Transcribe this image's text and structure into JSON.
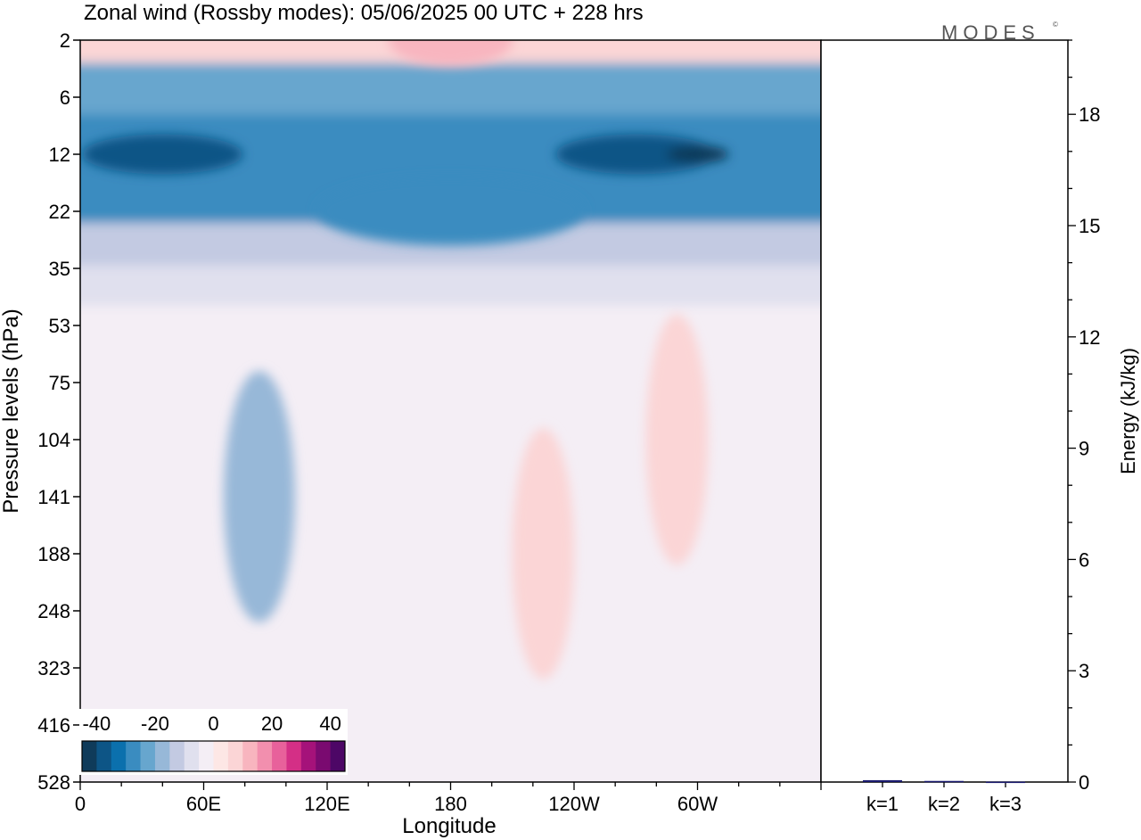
{
  "title": "Zonal wind (Rossby modes):  05/06/2025  00 UTC  + 228 hrs",
  "logo": "MODES",
  "logo_mark": "©",
  "colors": {
    "neg": [
      "#0f3b5a",
      "#0d5586",
      "#0b70ad",
      "#3a8cc0",
      "#67a6ce",
      "#97b8d8",
      "#c3cae2",
      "#e0e0ee"
    ],
    "zero": "#f4eef5",
    "pos": [
      "#fde7e5",
      "#fbd5d6",
      "#f8b5bf",
      "#f28fae",
      "#e8619b",
      "#d42f86",
      "#a5127a",
      "#7a0a70",
      "#4d0766"
    ],
    "bar": "#1a1a6e"
  },
  "chart_data": [
    {
      "type": "heatmap",
      "title": "Zonal wind (Rossby modes):  05/06/2025  00 UTC  + 228 hrs",
      "xlabel": "Longitude",
      "ylabel": "Pressure levels (hPa)",
      "x_ticks": [
        "0",
        "60E",
        "120E",
        "180",
        "120W",
        "60W"
      ],
      "y_ticks": [
        "2",
        "6",
        "12",
        "22",
        "35",
        "53",
        "75",
        "104",
        "141",
        "188",
        "248",
        "323",
        "416",
        "528"
      ],
      "colorbar": {
        "tick_labels": [
          "-40",
          "-20",
          "0",
          "20",
          "40"
        ],
        "range": [
          -45,
          45
        ],
        "step": 5
      },
      "features": [
        {
          "level": "2",
          "lon": 180,
          "value": 15
        },
        {
          "level": "12",
          "lon": 40,
          "value": -35
        },
        {
          "level": "12",
          "lon": 270,
          "value": -35
        },
        {
          "level": "12",
          "lon": 300,
          "value": -40
        },
        {
          "level": "22",
          "lon": 180,
          "value": -25
        },
        {
          "level": "141",
          "lon": 87,
          "value": -15
        },
        {
          "level": "188",
          "lon": 225,
          "value": 12
        },
        {
          "level": "104",
          "lon": 290,
          "value": 12
        }
      ]
    },
    {
      "type": "bar",
      "ylabel": "Energy (kJ/kg)",
      "categories": [
        "k=1",
        "k=2",
        "k=3"
      ],
      "values": [
        0.05,
        0.03,
        0.01
      ],
      "ylim": [
        0,
        20
      ],
      "y_ticks": [
        "0",
        "3",
        "6",
        "9",
        "12",
        "15",
        "18"
      ]
    }
  ]
}
